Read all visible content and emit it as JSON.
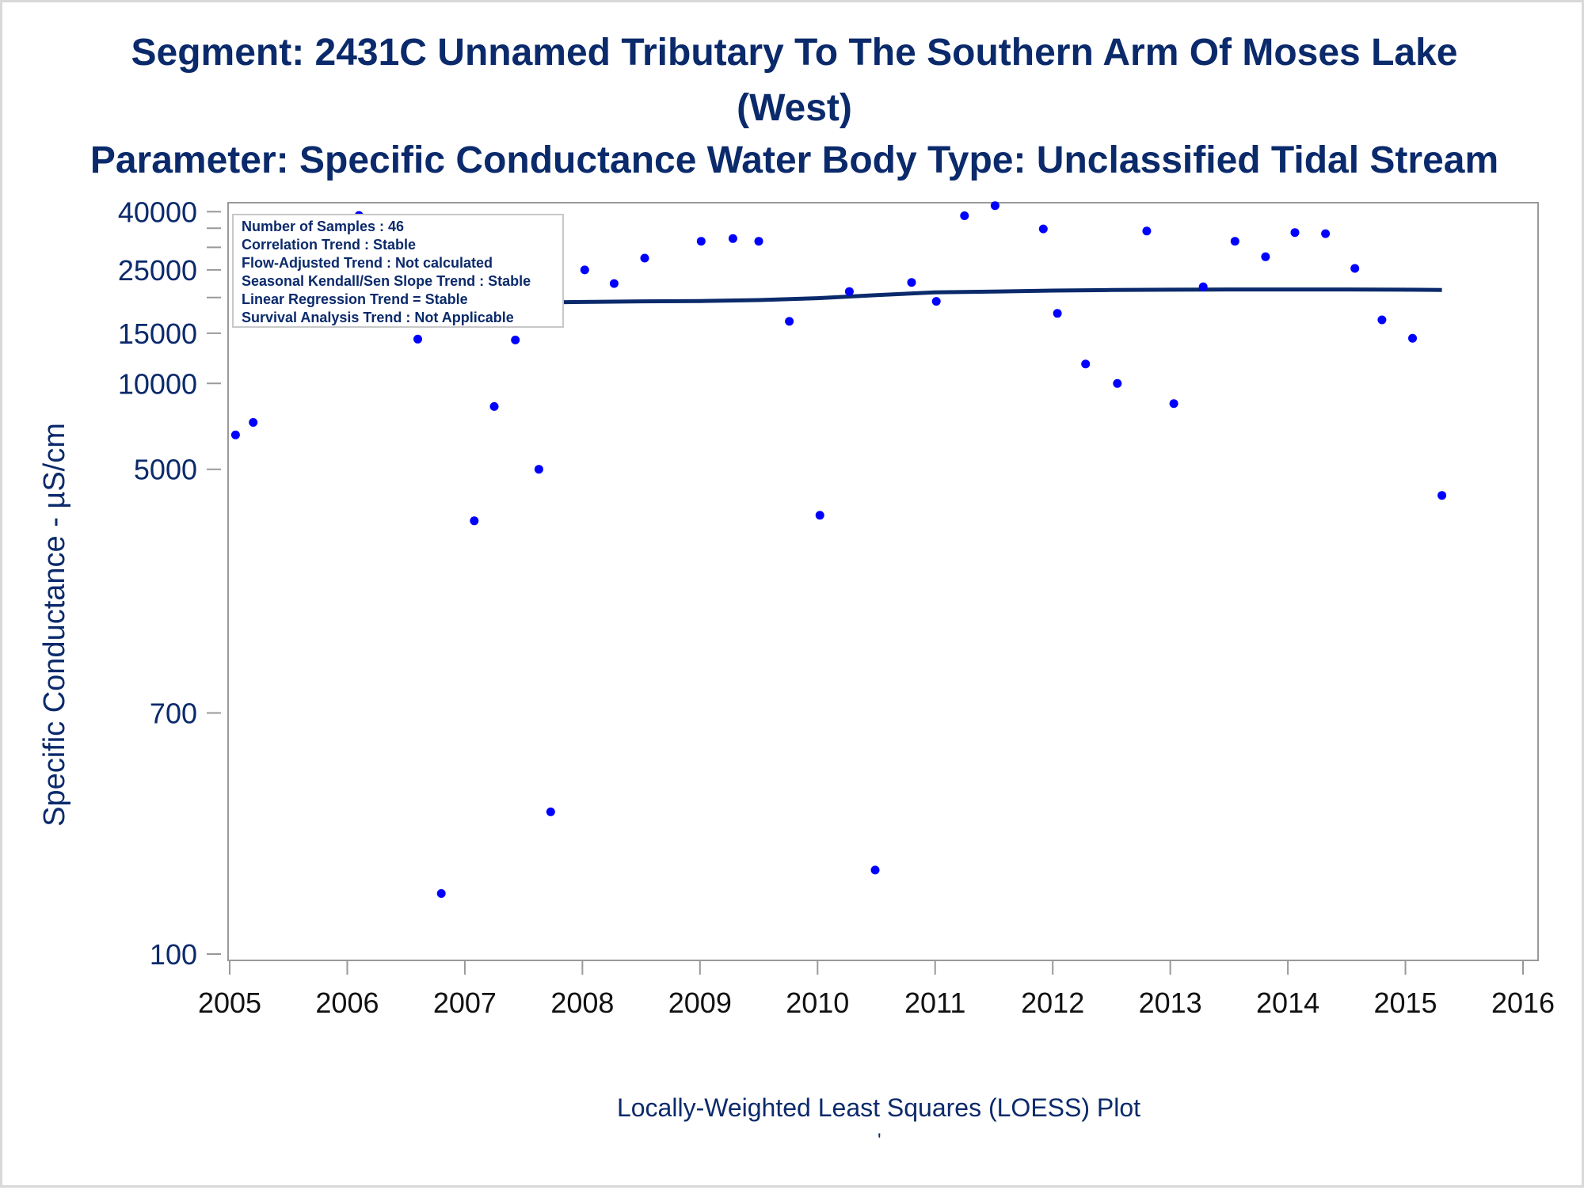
{
  "title_line1": "Segment: 2431C  Unnamed Tributary To The Southern Arm Of Moses Lake",
  "title_line2": "(West)",
  "title_line3": "Parameter: Specific Conductance   Water Body Type: Unclassified Tidal Stream",
  "footnote": "Locally-Weighted Least Squares (LOESS) Plot",
  "footnote_mark": "'",
  "colors": {
    "title": "#0b2a6b",
    "points": "#0000ff",
    "loess": "#0b2a6b",
    "frame": "#999999"
  },
  "legend_box": [
    "Number of Samples : 46",
    "Correlation Trend : Stable",
    "Flow-Adjusted Trend : Not calculated",
    "Seasonal Kendall/Sen Slope Trend : Stable",
    "Linear Regression Trend = Stable",
    "Survival Analysis Trend : Not Applicable"
  ],
  "chart_data": {
    "type": "scatter",
    "title": "Segment: 2431C  Unnamed Tributary To The Southern Arm Of Moses Lake (West)",
    "subtitle": "Parameter: Specific Conductance   Water Body Type: Unclassified Tidal Stream",
    "xlabel": "",
    "ylabel": "Specific Conductance -  µS/cm",
    "x_scale": "linear-year",
    "y_scale": "log",
    "xlim": [
      2005,
      2016
    ],
    "ylim": [
      95,
      43000
    ],
    "x_ticks": [
      2005,
      2006,
      2007,
      2008,
      2009,
      2010,
      2011,
      2012,
      2013,
      2014,
      2015,
      2016
    ],
    "y_ticks": [
      100,
      700,
      5000,
      10000,
      15000,
      25000,
      40000
    ],
    "y_ticks_unlabeled": [
      30000,
      35000,
      20000
    ],
    "grid": false,
    "legend_placement": "top-left inset",
    "series": [
      {
        "type": "scatter",
        "points": [
          [
            2005.05,
            6600
          ],
          [
            2005.2,
            7300
          ],
          [
            2005.37,
            26000
          ],
          [
            2005.55,
            33000
          ],
          [
            2005.78,
            28000
          ],
          [
            2005.93,
            23800
          ],
          [
            2006.1,
            38800
          ],
          [
            2006.3,
            27500
          ],
          [
            2006.37,
            36200
          ],
          [
            2006.45,
            28900
          ],
          [
            2006.6,
            14300
          ],
          [
            2006.8,
            163
          ],
          [
            2007.08,
            3300
          ],
          [
            2007.25,
            8300
          ],
          [
            2007.43,
            14200
          ],
          [
            2007.63,
            5000
          ],
          [
            2007.73,
            315
          ],
          [
            2008.02,
            25000
          ],
          [
            2008.27,
            22400
          ],
          [
            2008.53,
            27500
          ],
          [
            2009.01,
            31500
          ],
          [
            2009.28,
            32200
          ],
          [
            2009.5,
            31500
          ],
          [
            2009.76,
            16500
          ],
          [
            2010.02,
            3450
          ],
          [
            2010.27,
            21000
          ],
          [
            2010.49,
            197
          ],
          [
            2010.8,
            22600
          ],
          [
            2011.01,
            19400
          ],
          [
            2011.25,
            38700
          ],
          [
            2011.51,
            42000
          ],
          [
            2011.92,
            34800
          ],
          [
            2012.04,
            17600
          ],
          [
            2012.28,
            11700
          ],
          [
            2012.55,
            10000
          ],
          [
            2012.8,
            34200
          ],
          [
            2013.03,
            8500
          ],
          [
            2013.28,
            21800
          ],
          [
            2013.55,
            31500
          ],
          [
            2013.81,
            27800
          ],
          [
            2014.06,
            33800
          ],
          [
            2014.32,
            33500
          ],
          [
            2014.57,
            25300
          ],
          [
            2014.8,
            16700
          ],
          [
            2015.06,
            14400
          ],
          [
            2015.31,
            4050
          ]
        ]
      },
      {
        "type": "line",
        "points": [
          [
            2005.05,
            18500
          ],
          [
            2005.5,
            18700
          ],
          [
            2006.0,
            18800
          ],
          [
            2006.5,
            18900
          ],
          [
            2007.0,
            19050
          ],
          [
            2007.5,
            19200
          ],
          [
            2008.0,
            19300
          ],
          [
            2008.5,
            19400
          ],
          [
            2009.0,
            19450
          ],
          [
            2009.5,
            19600
          ],
          [
            2010.0,
            19900
          ],
          [
            2010.5,
            20400
          ],
          [
            2011.0,
            20850
          ],
          [
            2011.5,
            21000
          ],
          [
            2012.0,
            21150
          ],
          [
            2012.5,
            21250
          ],
          [
            2013.0,
            21300
          ],
          [
            2013.5,
            21350
          ],
          [
            2014.0,
            21350
          ],
          [
            2014.5,
            21350
          ],
          [
            2015.0,
            21300
          ],
          [
            2015.31,
            21250
          ]
        ]
      }
    ]
  }
}
